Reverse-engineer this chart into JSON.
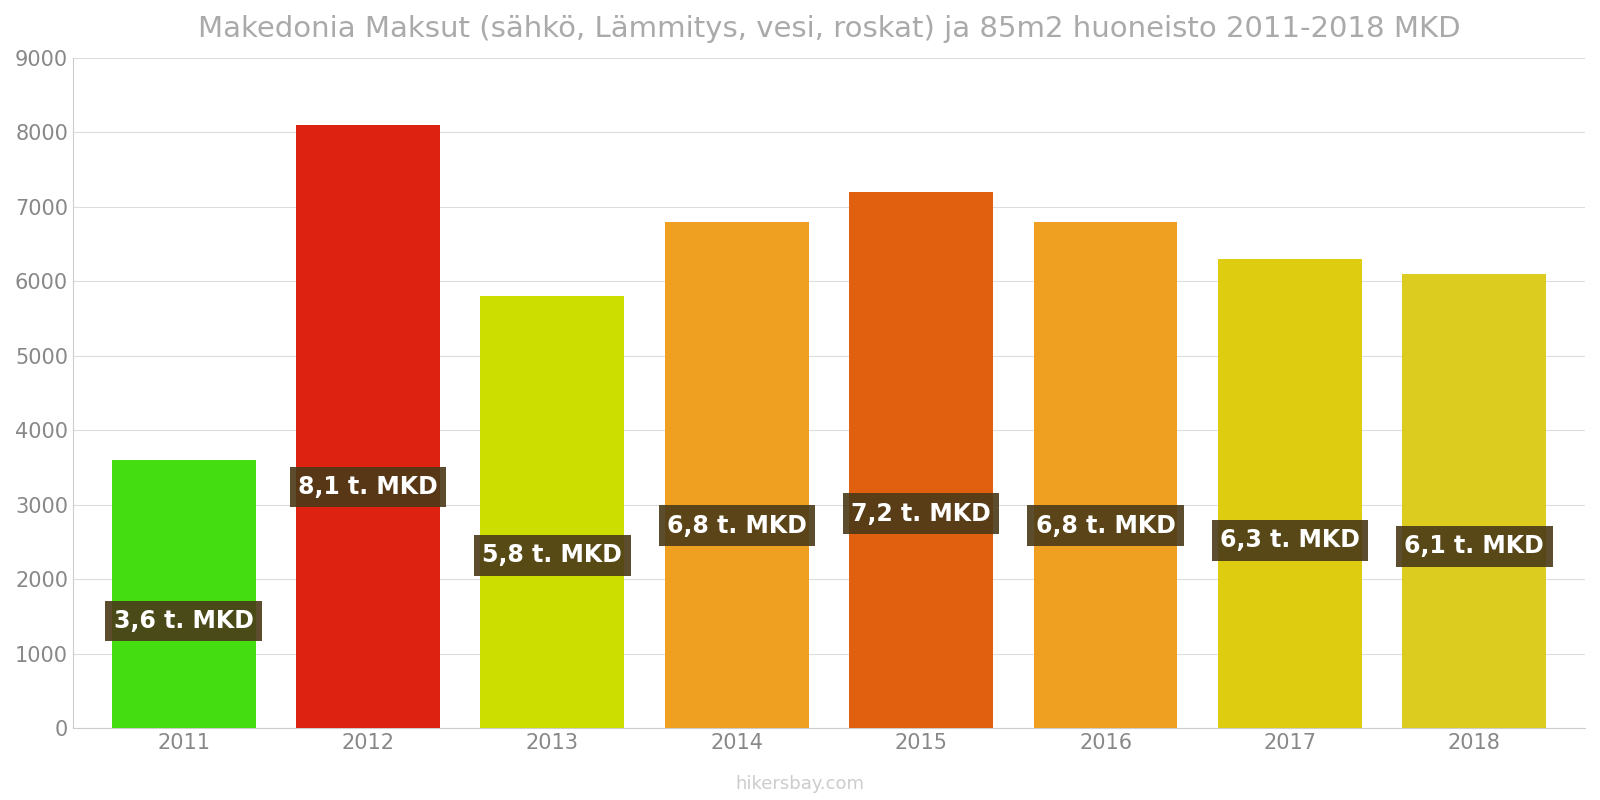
{
  "years": [
    2011,
    2012,
    2013,
    2014,
    2015,
    2016,
    2017,
    2018
  ],
  "values": [
    3600,
    8100,
    5800,
    6800,
    7200,
    6800,
    6300,
    6100
  ],
  "labels": [
    "3,6 t. MKD",
    "8,1 t. MKD",
    "5,8 t. MKD",
    "6,8 t. MKD",
    "7,2 t. MKD",
    "6,8 t. MKD",
    "6,3 t. MKD",
    "6,1 t. MKD"
  ],
  "bar_colors": [
    "#44dd11",
    "#dd2211",
    "#ccdd00",
    "#f0a020",
    "#e06010",
    "#f0a020",
    "#ddcc10",
    "#ddcc20"
  ],
  "title": "Makedonia Maksut (sähkö, Lämmitys, vesi, roskat) ja 85m2 huoneisto 2011-2018 MKD",
  "ylim": [
    0,
    9000
  ],
  "yticks": [
    0,
    1000,
    2000,
    3000,
    4000,
    5000,
    6000,
    7000,
    8000,
    9000
  ],
  "background_color": "#ffffff",
  "label_bg_color": "#4a3a18",
  "label_text_color": "#ffffff",
  "label_fontsize": 17,
  "title_fontsize": 21,
  "tick_fontsize": 15,
  "watermark": "hikersbay.com",
  "bar_width": 0.78
}
